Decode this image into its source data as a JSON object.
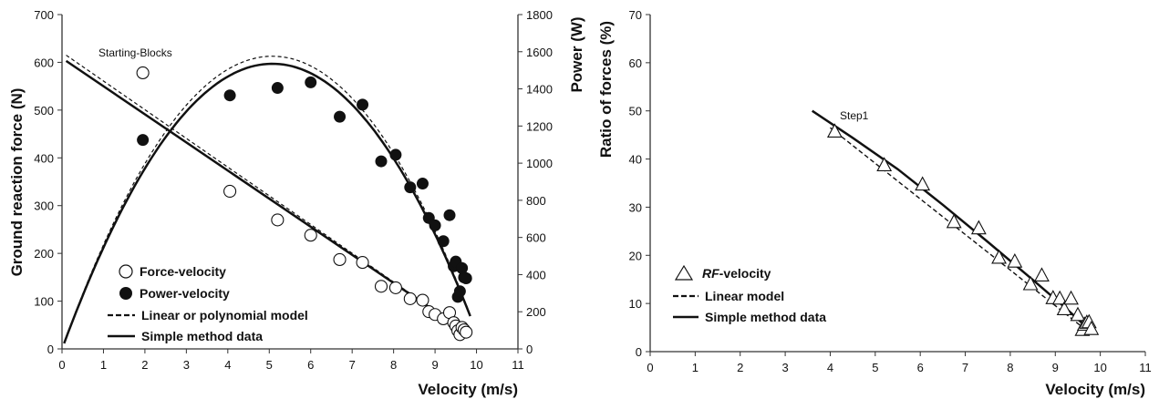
{
  "chart_data": [
    {
      "type": "scatter",
      "panel": "left",
      "xlabel": "Velocity (m/s)",
      "ylabel": "Ground reaction force (N)",
      "y2label": "Power (W)",
      "xlim": [
        0,
        11
      ],
      "ylim": [
        0,
        700
      ],
      "y2lim": [
        0,
        1800
      ],
      "xticks": [
        0,
        1,
        2,
        3,
        4,
        5,
        6,
        7,
        8,
        9,
        10,
        11
      ],
      "yticks": [
        0,
        100,
        200,
        300,
        400,
        500,
        600,
        700
      ],
      "y2ticks": [
        0,
        200,
        400,
        600,
        800,
        1000,
        1200,
        1400,
        1600,
        1800
      ],
      "annotation": "Starting-Blocks",
      "legend_position": "bottom-left",
      "series": [
        {
          "name": "Force-velocity",
          "kind": "points",
          "marker": "open-circle",
          "axis": "left",
          "x": [
            1.95,
            4.05,
            5.2,
            6.0,
            6.7,
            7.25,
            7.7,
            8.05,
            8.4,
            8.7,
            8.85,
            9.0,
            9.2,
            9.35,
            9.45,
            9.5,
            9.55,
            9.6,
            9.65,
            9.7,
            9.75
          ],
          "y": [
            578,
            330,
            270,
            238,
            187,
            181,
            131,
            128,
            105,
            102,
            78,
            72,
            63,
            76,
            55,
            48,
            38,
            30,
            45,
            40,
            35
          ]
        },
        {
          "name": "Power-velocity",
          "kind": "points",
          "marker": "filled-circle",
          "axis": "right",
          "x": [
            1.95,
            4.05,
            5.2,
            6.0,
            6.7,
            7.25,
            7.7,
            8.05,
            8.4,
            8.7,
            8.85,
            9.0,
            9.2,
            9.35,
            9.45,
            9.5,
            9.55,
            9.6,
            9.65,
            9.7,
            9.75
          ],
          "y": [
            1125,
            1365,
            1405,
            1435,
            1250,
            1315,
            1010,
            1045,
            870,
            890,
            705,
            665,
            580,
            720,
            445,
            470,
            280,
            310,
            435,
            385,
            380
          ]
        },
        {
          "name": "Linear or polynomial model",
          "kind": "curves",
          "style": "dashed",
          "force_line": {
            "x": [
              0.1,
              9.7
            ],
            "y": [
              615,
              38
            ]
          },
          "power_curve": {
            "v0": 10.15,
            "f0": 621
          }
        },
        {
          "name": "Simple method data",
          "kind": "curves",
          "style": "solid",
          "force_line": {
            "x": [
              0.1,
              9.8
            ],
            "y": [
              603,
              32
            ]
          },
          "power_curve": {
            "v0": 10.15,
            "f0": 605
          }
        }
      ]
    },
    {
      "type": "scatter",
      "panel": "right",
      "xlabel": "Velocity (m/s)",
      "ylabel": "Ratio of forces (%)",
      "xlim": [
        0,
        11
      ],
      "ylim": [
        0,
        70
      ],
      "xticks": [
        0,
        1,
        2,
        3,
        4,
        5,
        6,
        7,
        8,
        9,
        10,
        11
      ],
      "yticks": [
        0,
        10,
        20,
        30,
        40,
        50,
        60,
        70
      ],
      "annotation": "Step1",
      "legend_position": "bottom-right",
      "series": [
        {
          "name": "RF-velocity",
          "kind": "points",
          "marker": "open-triangle",
          "x": [
            4.1,
            5.2,
            6.05,
            6.75,
            7.3,
            7.75,
            8.1,
            8.45,
            8.7,
            8.95,
            9.1,
            9.2,
            9.35,
            9.5,
            9.6,
            9.65,
            9.7,
            9.75,
            9.8
          ],
          "y": [
            45.7,
            38.7,
            34.7,
            26.9,
            25.6,
            19.5,
            18.7,
            14.0,
            15.8,
            11.1,
            11.0,
            8.8,
            11.0,
            7.6,
            4.5,
            5.6,
            6.0,
            6.1,
            4.7
          ]
        },
        {
          "name": "Linear model",
          "kind": "line",
          "style": "dashed",
          "x": [
            4.0,
            9.75
          ],
          "y": [
            46.5,
            4.0
          ]
        },
        {
          "name": "Simple method data",
          "kind": "line",
          "style": "solid",
          "x": [
            3.6,
            4.5,
            5.5,
            6.5,
            7.5,
            8.5,
            9.2,
            9.8
          ],
          "y": [
            50.0,
            44.4,
            37.9,
            30.5,
            22.8,
            14.9,
            9.3,
            4.2
          ]
        }
      ]
    }
  ]
}
